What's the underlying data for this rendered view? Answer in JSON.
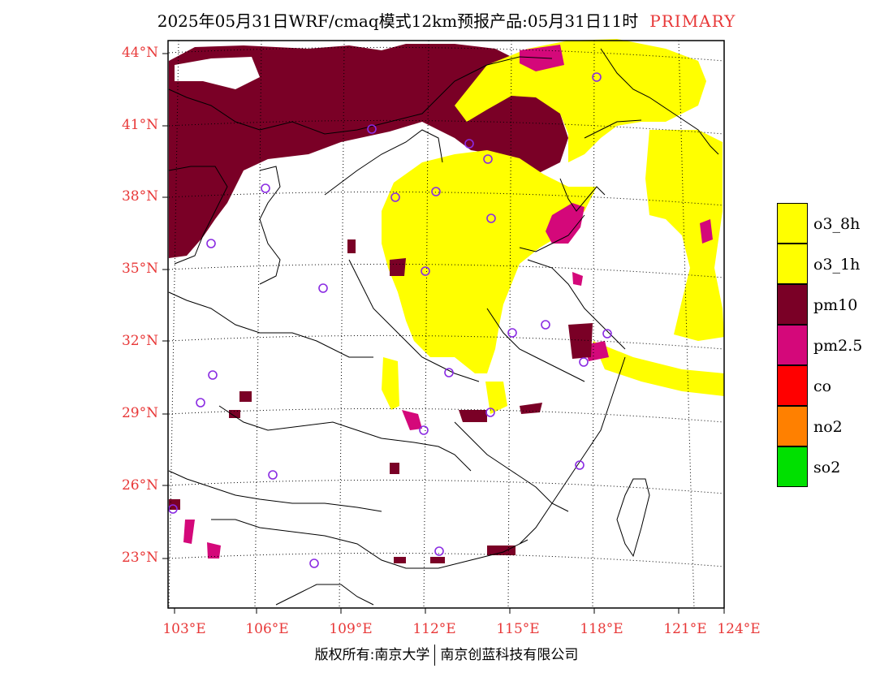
{
  "title": {
    "main": "2025年05月31日WRF/cmaq模式12km预报产品:05月31日11时",
    "tag": "PRIMARY"
  },
  "axes": {
    "lat_labels": [
      "44°N",
      "41°N",
      "38°N",
      "35°N",
      "32°N",
      "29°N",
      "26°N",
      "23°N"
    ],
    "lon_labels": [
      "103°E",
      "106°E",
      "109°E",
      "112°E",
      "115°E",
      "118°E",
      "121°E",
      "124°E"
    ]
  },
  "legend": [
    {
      "label": "o3_8h",
      "color": "#ffff00"
    },
    {
      "label": "o3_1h",
      "color": "#ffff00"
    },
    {
      "label": "pm10",
      "color": "#7a0026"
    },
    {
      "label": "pm2.5",
      "color": "#d4087a"
    },
    {
      "label": "co",
      "color": "#ff0000"
    },
    {
      "label": "no2",
      "color": "#ff8000"
    },
    {
      "label": "so2",
      "color": "#00e000"
    }
  ],
  "footer": {
    "left": "版权所有:南京大学",
    "right": "南京创蓝科技有限公司"
  },
  "colors": {
    "axis_label": "#e83838",
    "station_marker": "#8a2be2"
  }
}
